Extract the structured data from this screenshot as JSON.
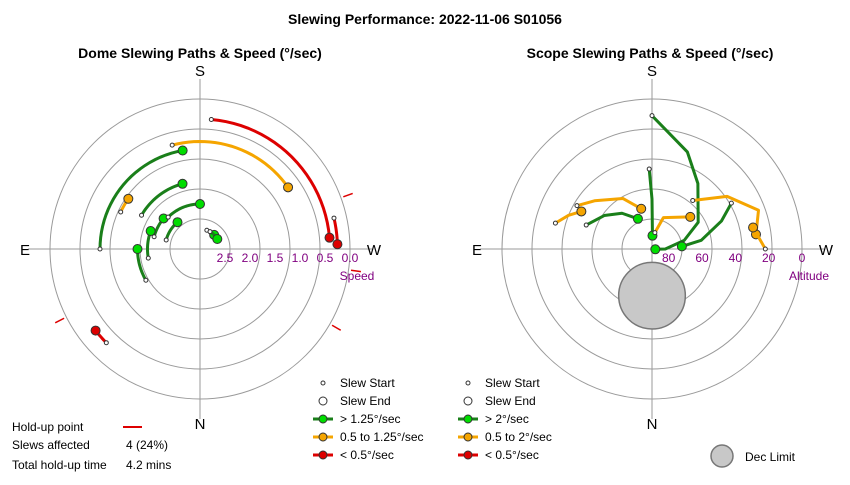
{
  "title": "Slewing Performance: 2022-11-06 S01056",
  "chart_data": [
    {
      "type": "polar-paths",
      "title": "Dome Slewing Paths & Speed (°/sec)",
      "radial_label": "Speed",
      "radial_ticks": [
        "2.5",
        "2.0",
        "1.5",
        "1.0",
        "0.5",
        "0.0"
      ],
      "radial_tick_values": [
        2.5,
        2.0,
        1.5,
        1.0,
        0.5,
        0.0
      ],
      "radial_range": [
        3.0,
        0.0
      ],
      "cardinals": {
        "top": "S",
        "bottom": "N",
        "left": "E",
        "right": "W"
      },
      "series": [
        {
          "speed": "high",
          "from_az": 90,
          "to_az": 170,
          "r": 1.0
        },
        {
          "speed": "high",
          "from_az": 120,
          "to_az": 165,
          "r": 1.65
        },
        {
          "speed": "high",
          "from_az": 105,
          "to_az": 130,
          "r": 2.05
        },
        {
          "speed": "high",
          "from_az": 105,
          "to_az": 140,
          "r": 2.3
        },
        {
          "speed": "high",
          "from_az": 135,
          "to_az": 180,
          "r": 2.1
        },
        {
          "speed": "high",
          "from_az": 200,
          "to_az": 225,
          "r": 2.6
        },
        {
          "speed": "high",
          "from_az": 80,
          "to_az": 110,
          "r": 1.95
        },
        {
          "speed": "high",
          "from_az": 60,
          "to_az": 90,
          "r": 1.75
        },
        {
          "speed": "high",
          "from_az": 210,
          "to_az": 240,
          "r": 2.6
        },
        {
          "speed": "mid",
          "from_az": 165,
          "to_az": 235,
          "r": 0.85
        },
        {
          "speed": "mid",
          "from_az": 115,
          "to_az": 125,
          "r": 1.25
        },
        {
          "speed": "low",
          "from_az": 185,
          "to_az": 265,
          "r": 0.4
        },
        {
          "speed": "low",
          "from_az": 257,
          "to_az": 268,
          "r": 0.25
        },
        {
          "speed": "low",
          "from_az": 45,
          "to_az": 52,
          "r": 0.35
        }
      ],
      "holdup_az": [
        63,
        250,
        278,
        300
      ],
      "summary": {
        "holdup_label": "Hold-up point",
        "slews_label": "Slews affected",
        "slews_value": "4  (24%)",
        "time_label": "Total hold-up time",
        "time_value": "4.2 mins"
      },
      "legend": [
        {
          "label": "Slew Start",
          "kind": "start"
        },
        {
          "label": "Slew End",
          "kind": "end"
        },
        {
          "label": "> 1.25°/sec",
          "kind": "line",
          "color": "#1a7f1a",
          "marker": "#00dd00"
        },
        {
          "label": "0.5 to 1.25°/sec",
          "kind": "line",
          "color": "#f5a500",
          "marker": "#f5a500"
        },
        {
          "label": "< 0.5°/sec",
          "kind": "line",
          "color": "#dd0000",
          "marker": "#dd0000"
        }
      ]
    },
    {
      "type": "polar-paths",
      "title": "Scope Slewing Paths & Speed (°/sec)",
      "radial_label": "Altitude",
      "radial_ticks": [
        "80",
        "60",
        "40",
        "20",
        "0"
      ],
      "radial_tick_values": [
        80,
        60,
        40,
        20,
        0
      ],
      "radial_range": [
        90,
        0
      ],
      "cardinals": {
        "top": "S",
        "bottom": "N",
        "left": "E",
        "right": "W"
      },
      "series": [
        {
          "speed": "high",
          "points": [
            [
              180,
              10
            ],
            [
              200,
              28
            ],
            [
              215,
              42
            ],
            [
              240,
              58
            ],
            [
              255,
              70
            ],
            [
              270,
              82
            ],
            [
              275,
              88
            ]
          ]
        },
        {
          "speed": "high",
          "points": [
            [
              240,
              35
            ],
            [
              248,
              45
            ],
            [
              260,
              60
            ],
            [
              265,
              72
            ]
          ]
        },
        {
          "speed": "high",
          "points": [
            [
              110,
              48
            ],
            [
              125,
              55
            ],
            [
              140,
              62
            ],
            [
              155,
              70
            ]
          ]
        },
        {
          "speed": "high",
          "points": [
            [
              178,
              42
            ],
            [
              180,
              60
            ],
            [
              182,
              82
            ]
          ]
        },
        {
          "speed": "mid",
          "points": [
            [
              220,
              52
            ],
            [
              235,
              35
            ],
            [
              250,
              22
            ],
            [
              262,
              27
            ]
          ]
        },
        {
          "speed": "mid",
          "points": [
            [
              120,
              38
            ],
            [
              130,
              45
            ],
            [
              150,
              55
            ],
            [
              165,
              65
            ]
          ]
        },
        {
          "speed": "mid",
          "points": [
            [
              105,
              30
            ],
            [
              112,
              36
            ],
            [
              118,
              42
            ]
          ]
        },
        {
          "speed": "mid",
          "points": [
            [
              190,
              80
            ],
            [
              200,
              70
            ],
            [
              230,
              60
            ]
          ]
        },
        {
          "speed": "mid",
          "points": [
            [
              270,
              22
            ],
            [
              258,
              28
            ]
          ]
        }
      ],
      "dec_limit": {
        "az": 0,
        "alt": 62,
        "radius_deg": 20
      },
      "legend": [
        {
          "label": "Slew Start",
          "kind": "start"
        },
        {
          "label": "Slew End",
          "kind": "end"
        },
        {
          "label": "> 2°/sec",
          "kind": "line",
          "color": "#1a7f1a",
          "marker": "#00dd00"
        },
        {
          "label": "0.5 to 2°/sec",
          "kind": "line",
          "color": "#f5a500",
          "marker": "#f5a500"
        },
        {
          "label": "< 0.5°/sec",
          "kind": "line",
          "color": "#dd0000",
          "marker": "#dd0000"
        },
        {
          "label": "Dec Limit",
          "kind": "dec"
        }
      ]
    }
  ]
}
